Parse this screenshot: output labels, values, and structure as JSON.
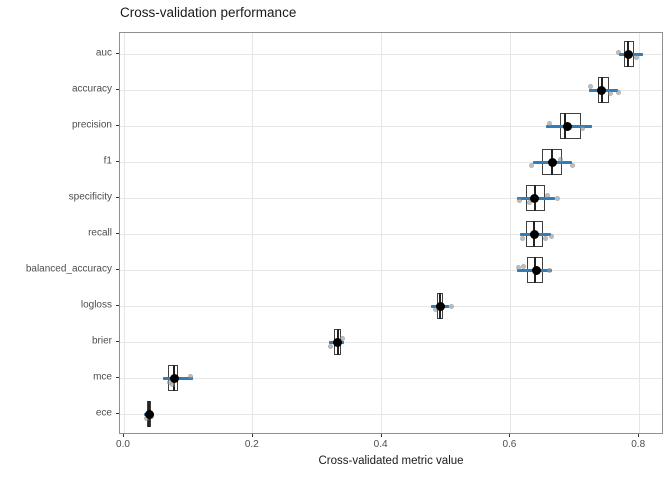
{
  "chart_data": {
    "type": "boxplot",
    "orientation": "horizontal",
    "title": "Cross-validation performance",
    "xlabel": "Cross-validated metric value",
    "ylabel": "",
    "grid": true,
    "legend_position": "none",
    "xlim": [
      -0.006,
      0.84
    ],
    "x_ticks": [
      0.0,
      0.2,
      0.4,
      0.6,
      0.8
    ],
    "x_tick_labels": [
      "0.0",
      "0.2",
      "0.4",
      "0.6",
      "0.8"
    ],
    "categories": [
      "auc",
      "accuracy",
      "precision",
      "f1",
      "specificity",
      "recall",
      "balanced_accuracy",
      "logloss",
      "brier",
      "mce",
      "ece"
    ],
    "series": [
      {
        "metric": "auc",
        "range_min": 0.769,
        "q1": 0.776,
        "median": 0.783,
        "q3": 0.792,
        "range_max": 0.806,
        "mean": 0.783,
        "points": [
          {
            "v": 0.768,
            "dy": -2
          },
          {
            "v": 0.796,
            "dy": 3
          }
        ]
      },
      {
        "metric": "accuracy",
        "range_min": 0.722,
        "q1": 0.736,
        "median": 0.743,
        "q3": 0.753,
        "range_max": 0.767,
        "mean": 0.742,
        "points": [
          {
            "v": 0.725,
            "dy": -4
          },
          {
            "v": 0.756,
            "dy": 3
          },
          {
            "v": 0.768,
            "dy": 2
          }
        ]
      },
      {
        "metric": "precision",
        "range_min": 0.655,
        "q1": 0.677,
        "median": 0.685,
        "q3": 0.71,
        "range_max": 0.727,
        "mean": 0.688,
        "points": [
          {
            "v": 0.66,
            "dy": -3
          },
          {
            "v": 0.712,
            "dy": 2
          }
        ]
      },
      {
        "metric": "f1",
        "range_min": 0.635,
        "q1": 0.649,
        "median": 0.665,
        "q3": 0.68,
        "range_max": 0.696,
        "mean": 0.665,
        "points": [
          {
            "v": 0.632,
            "dy": 3
          },
          {
            "v": 0.678,
            "dy": -3
          },
          {
            "v": 0.697,
            "dy": 3
          }
        ]
      },
      {
        "metric": "specificity",
        "range_min": 0.61,
        "q1": 0.624,
        "median": 0.638,
        "q3": 0.654,
        "range_max": 0.669,
        "mean": 0.638,
        "points": [
          {
            "v": 0.614,
            "dy": 2
          },
          {
            "v": 0.629,
            "dy": 4
          },
          {
            "v": 0.658,
            "dy": -3
          },
          {
            "v": 0.673,
            "dy": 0
          }
        ]
      },
      {
        "metric": "recall",
        "range_min": 0.615,
        "q1": 0.624,
        "median": 0.637,
        "q3": 0.651,
        "range_max": 0.663,
        "mean": 0.637,
        "points": [
          {
            "v": 0.619,
            "dy": 4
          },
          {
            "v": 0.655,
            "dy": 4
          },
          {
            "v": 0.664,
            "dy": 2
          }
        ]
      },
      {
        "metric": "balanced_accuracy",
        "range_min": 0.61,
        "q1": 0.626,
        "median": 0.638,
        "q3": 0.651,
        "range_max": 0.665,
        "mean": 0.64,
        "points": [
          {
            "v": 0.612,
            "dy": -3
          },
          {
            "v": 0.621,
            "dy": -4
          },
          {
            "v": 0.66,
            "dy": 0
          }
        ]
      },
      {
        "metric": "logloss",
        "range_min": 0.477,
        "q1": 0.486,
        "median": 0.491,
        "q3": 0.495,
        "range_max": 0.505,
        "mean": 0.491,
        "points": [
          {
            "v": 0.484,
            "dy": 3
          },
          {
            "v": 0.508,
            "dy": 0
          }
        ]
      },
      {
        "metric": "brier",
        "range_min": 0.318,
        "q1": 0.326,
        "median": 0.332,
        "q3": 0.337,
        "range_max": 0.342,
        "mean": 0.331,
        "points": [
          {
            "v": 0.321,
            "dy": 4
          },
          {
            "v": 0.34,
            "dy": -4
          }
        ]
      },
      {
        "metric": "mce",
        "range_min": 0.061,
        "q1": 0.068,
        "median": 0.078,
        "q3": 0.084,
        "range_max": 0.107,
        "mean": 0.078,
        "points": [
          {
            "v": 0.07,
            "dy": 4
          },
          {
            "v": 0.076,
            "dy": 6
          },
          {
            "v": 0.104,
            "dy": -2
          }
        ]
      },
      {
        "metric": "ece",
        "range_min": 0.031,
        "q1": 0.036,
        "median": 0.039,
        "q3": 0.042,
        "range_max": 0.047,
        "mean": 0.039,
        "points": [
          {
            "v": 0.043,
            "dy": 2
          },
          {
            "v": 0.035,
            "dy": 4
          }
        ]
      }
    ],
    "colors": {
      "range_line": "#2e7ebc",
      "box_border": "#3f3f3f",
      "box_fill": "#ffffff",
      "median": "#222222",
      "mean_point": "#000000",
      "jitter_point": "#9e9e9e",
      "grid": "#e6e6e6",
      "panel_border": "#8f8f8f",
      "axis_text": "#4d4d4d",
      "title_text": "#1a1a1a"
    }
  }
}
